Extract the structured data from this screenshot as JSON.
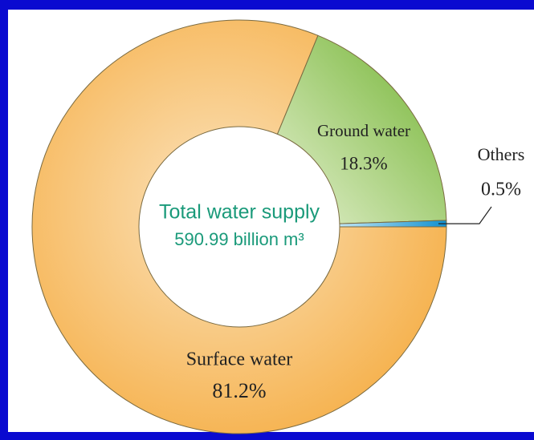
{
  "chart_data": {
    "type": "donut",
    "center_label": [
      "Total water supply",
      "590.99 billion m³"
    ],
    "categories": [
      "Surface water",
      "Ground water",
      "Others"
    ],
    "values": [
      81.2,
      18.3,
      0.5
    ],
    "value_labels": [
      "81.2%",
      "18.3%",
      "0.5%"
    ],
    "colors": [
      "#f5b247",
      "#8cc24a",
      "#2aa3dc"
    ]
  }
}
